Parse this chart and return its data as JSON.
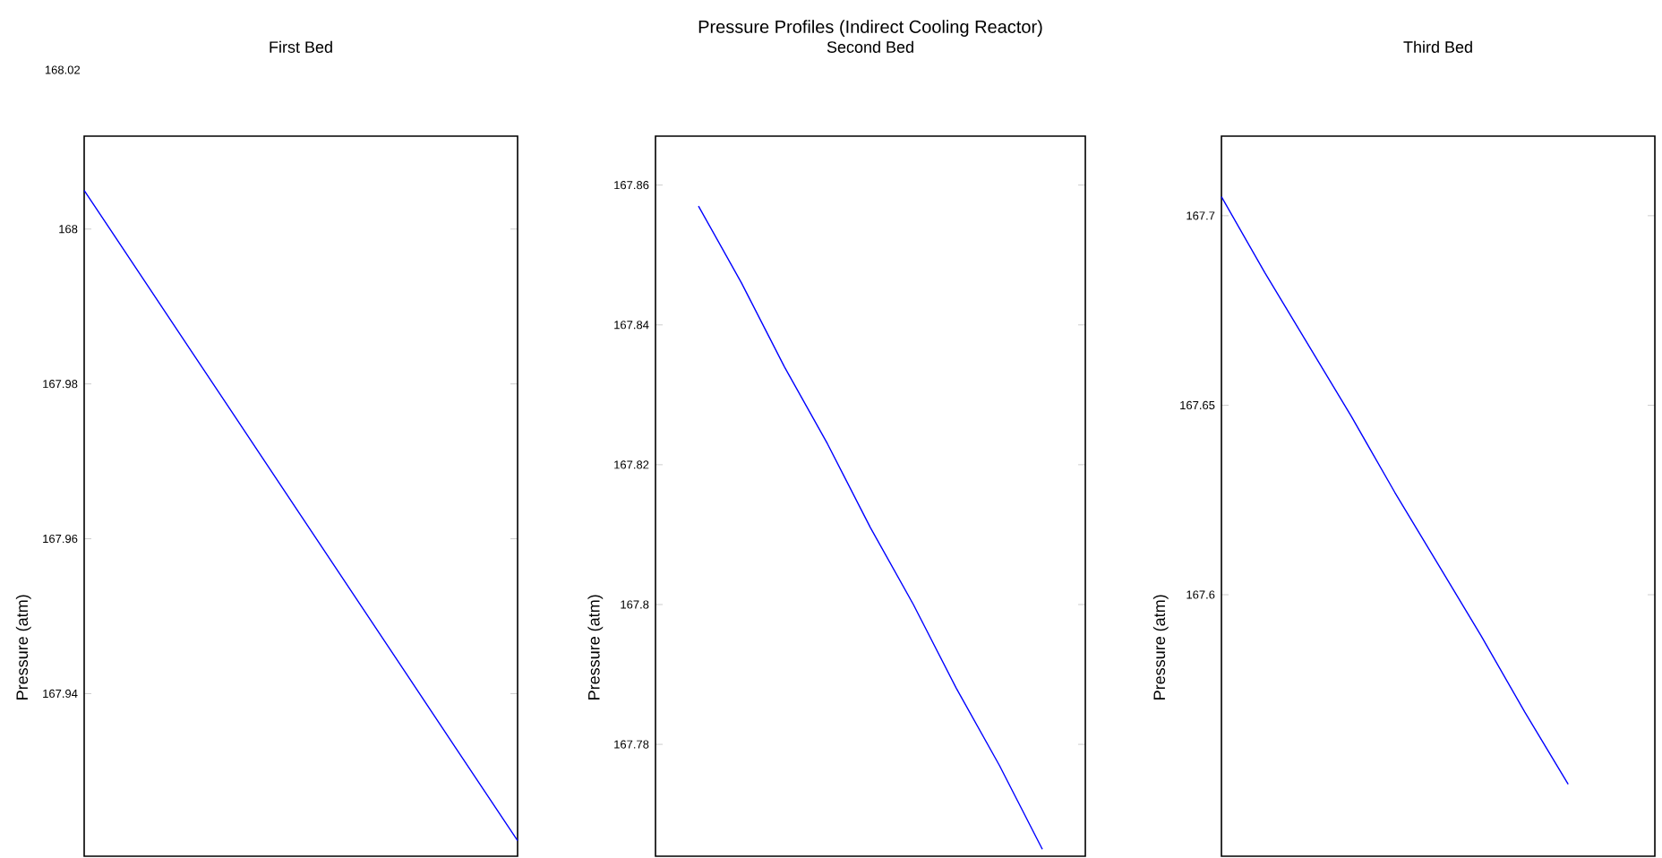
{
  "chart_data": [
    {
      "type": "line",
      "title": "First Bed",
      "ylabel": "Pressure (atm)",
      "categories": [
        null,
        null,
        null,
        null,
        null
      ],
      "series": [
        {
          "color": "#0000ff",
          "values": [
            168.005,
            167.984,
            167.963,
            167.942,
            167.921
          ]
        }
      ],
      "ylim": [
        167.919,
        168.012
      ],
      "yticks": [
        168,
        167.98,
        167.96,
        167.94
      ],
      "tick_labels": "y",
      "annotations": [
        "168.02"
      ]
    },
    {
      "type": "line",
      "title": "Pressure Profiles (Indirect Cooling Reactor)",
      "subtitle": "Second Bed",
      "ylabel": "Pressure (atm)",
      "categories": [
        null,
        null,
        null,
        null,
        null,
        null,
        null,
        null,
        null,
        null,
        null
      ],
      "series": [
        {
          "color": "#0000ff",
          "values": [
            null,
            167.857,
            167.846,
            167.834,
            167.823,
            167.811,
            167.8,
            167.788,
            167.777,
            167.765,
            null
          ]
        }
      ],
      "ylim": [
        167.764,
        167.867
      ],
      "yticks": [
        167.86,
        167.84,
        167.82,
        167.8,
        167.78
      ],
      "tick_labels": "y"
    },
    {
      "type": "line",
      "title": "Third Bed",
      "ylabel": "Pressure (atm)",
      "categories": [
        null,
        null,
        null,
        null,
        null,
        null,
        null,
        null,
        null,
        null,
        null
      ],
      "series": [
        {
          "color": "#0000ff",
          "values": [
            167.705,
            167.685,
            167.666,
            167.647,
            167.627,
            167.608,
            167.589,
            167.569,
            167.55,
            null,
            null
          ]
        }
      ],
      "ylim": [
        167.531,
        167.721
      ],
      "yticks": [
        167.7,
        167.65,
        167.6
      ],
      "tick_labels": "y"
    }
  ]
}
